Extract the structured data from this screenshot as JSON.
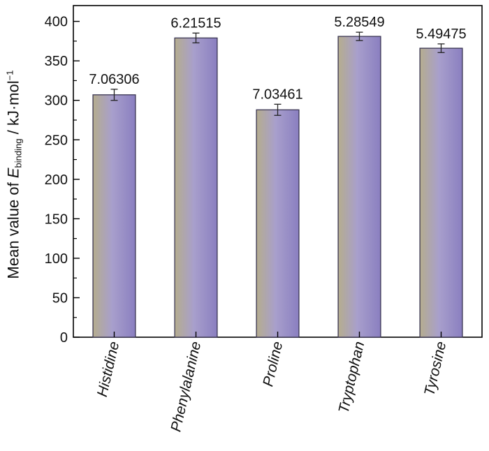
{
  "chart_data": {
    "type": "bar",
    "categories": [
      "Histidine",
      "Phenylalanine",
      "Proline",
      "Tryptophan",
      "Tyrosine"
    ],
    "values": [
      307,
      379,
      288,
      381,
      366
    ],
    "errors": [
      7.06306,
      6.21515,
      7.03461,
      5.28549,
      5.49475
    ],
    "data_labels": [
      "7.06306",
      "6.21515",
      "7.03461",
      "5.28549",
      "5.49475"
    ],
    "ylabel": {
      "prefix": "Mean value of ",
      "symbol": "E",
      "subscript": "binding",
      "suffix": " / kJ·mol",
      "superscript": "−1"
    },
    "ylim": [
      0,
      420
    ],
    "yticks": [
      0,
      50,
      100,
      150,
      200,
      250,
      300,
      350,
      400
    ],
    "grid": false,
    "bar_gradient": [
      "#b5ad8e",
      "#a89fcc",
      "#8a7fc0"
    ]
  }
}
